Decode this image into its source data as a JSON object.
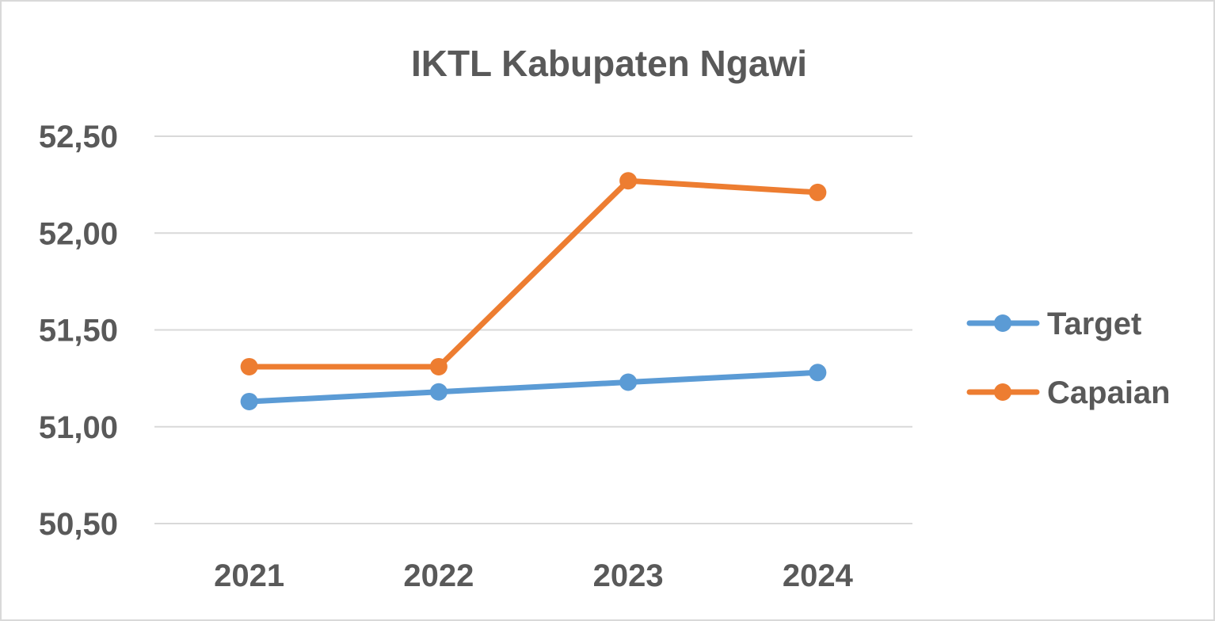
{
  "chart_data": {
    "type": "line",
    "title": "IKTL Kabupaten Ngawi",
    "xlabel": "",
    "ylabel": "",
    "categories": [
      "2021",
      "2022",
      "2023",
      "2024"
    ],
    "ylim": [
      50.5,
      52.5
    ],
    "yticks": [
      50.5,
      51.0,
      51.5,
      52.0,
      52.5
    ],
    "ytick_labels": [
      "50,50",
      "51,00",
      "51,50",
      "52,00",
      "52,50"
    ],
    "grid": true,
    "legend_position": "right",
    "series": [
      {
        "name": "Target",
        "color": "#5b9bd5",
        "values": [
          51.13,
          51.18,
          51.23,
          51.28
        ]
      },
      {
        "name": "Capaian",
        "color": "#ed7d31",
        "values": [
          51.31,
          51.31,
          52.27,
          52.21
        ]
      }
    ]
  }
}
